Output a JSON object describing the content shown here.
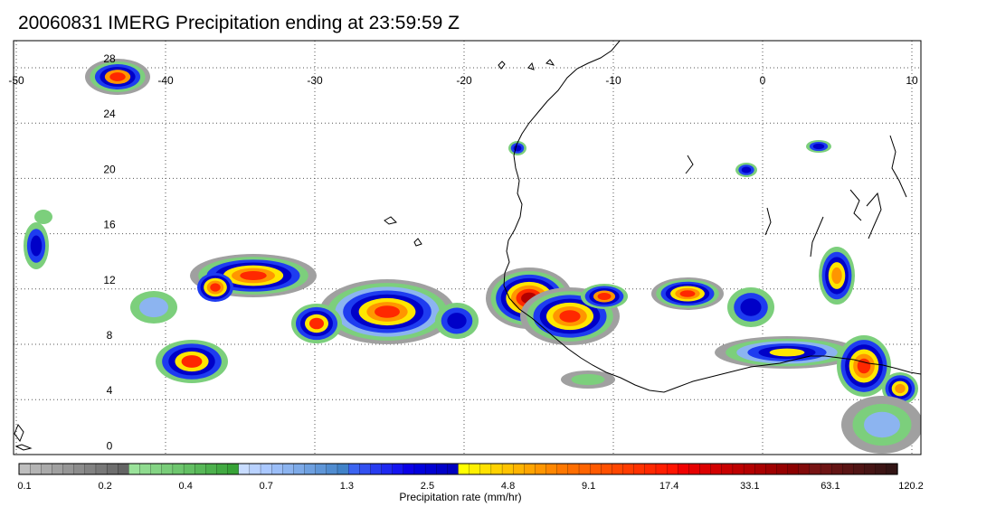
{
  "title": "20060831 IMERG Precipitation ending at 23:59:59 Z",
  "map": {
    "lon_min": -50,
    "lon_max": 10,
    "lat_min": -1,
    "lat_max": 30,
    "lon_ticks": [
      -50,
      -40,
      -30,
      -20,
      -10,
      0,
      10
    ],
    "lon_tick_labels": [
      "-50",
      "-40",
      "-30",
      "-20",
      "-10",
      "0",
      "10"
    ],
    "lat_ticks": [
      0,
      4,
      8,
      12,
      16,
      20,
      24,
      28
    ],
    "lat_tick_labels": [
      "0",
      "4",
      "8",
      "12",
      "16",
      "20",
      "24",
      "28"
    ],
    "gridlines": "dotted",
    "coastline_color": "#000000"
  },
  "colorbar": {
    "title": "Precipitation rate (mm/hr)",
    "labels": [
      "0.1",
      "0.2",
      "0.4",
      "0.7",
      "1.3",
      "2.5",
      "4.8",
      "9.1",
      "17.4",
      "33.1",
      "63.1",
      "120.2"
    ],
    "colors": [
      "#bebebe",
      "#b4b4b4",
      "#aaaaaa",
      "#a0a0a0",
      "#969696",
      "#8c8c8c",
      "#828282",
      "#787878",
      "#6e6e6e",
      "#646464",
      "#9ae29a",
      "#8fdb8f",
      "#84d484",
      "#79cd79",
      "#6ec66e",
      "#63bf63",
      "#58b858",
      "#4db14d",
      "#42aa42",
      "#37a337",
      "#c8dcff",
      "#b9d2ff",
      "#aac8ff",
      "#9bbef8",
      "#8cb4f0",
      "#7daae8",
      "#6ea0e0",
      "#5f96d8",
      "#508cd0",
      "#4182c8",
      "#3c64f0",
      "#3250f0",
      "#283cf0",
      "#1e28f0",
      "#1414f0",
      "#0a00e6",
      "#0000dc",
      "#0000d2",
      "#0000c8",
      "#0000be",
      "#ffff00",
      "#fff000",
      "#ffe100",
      "#ffd200",
      "#ffc300",
      "#ffb400",
      "#ffa500",
      "#ff9600",
      "#ff8700",
      "#ff7800",
      "#ff6e00",
      "#ff6400",
      "#ff5a00",
      "#ff5000",
      "#ff4600",
      "#ff3c00",
      "#ff3200",
      "#ff2800",
      "#ff1e00",
      "#ff1400",
      "#f00000",
      "#e60000",
      "#dc0000",
      "#d20000",
      "#c80000",
      "#be0000",
      "#b40000",
      "#aa0000",
      "#a00000",
      "#960000",
      "#8c0000",
      "#820a0a",
      "#781414",
      "#6e1414",
      "#641414",
      "#5a1414",
      "#501414",
      "#461414",
      "#3c1414",
      "#321414"
    ]
  },
  "precip_palette": {
    "gray": "#a0a0a0",
    "green": "#7ccf7c",
    "light_blue": "#8cb4f0",
    "blue": "#1e3cf0",
    "dark_blue": "#0000c8",
    "yellow": "#ffe600",
    "orange": "#ff9600",
    "red": "#ff2800",
    "dark_red": "#b40000"
  }
}
